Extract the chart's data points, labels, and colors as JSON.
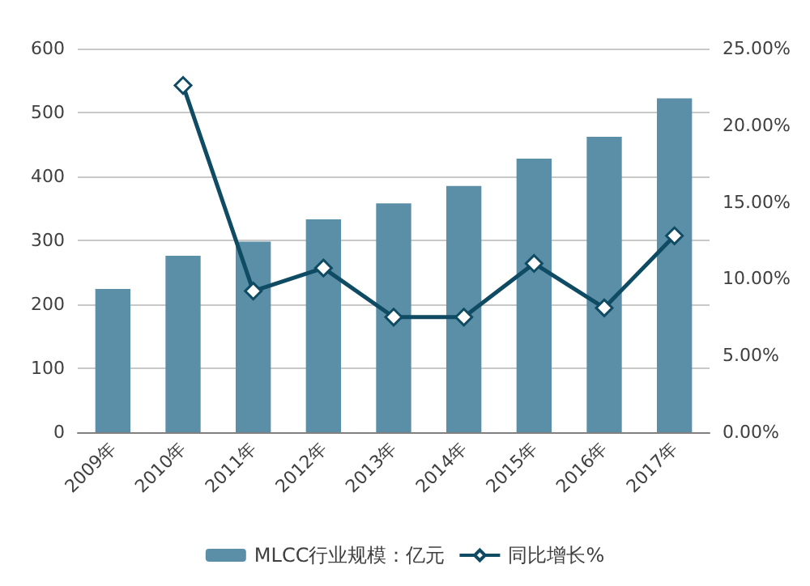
{
  "chart_data": {
    "type": "bar",
    "categories": [
      "2009年",
      "2010年",
      "2011年",
      "2012年",
      "2013年",
      "2014年",
      "2015年",
      "2016年",
      "2017年"
    ],
    "series": [
      {
        "name": "MLCC行业规模：亿元",
        "color": "#5b8fa8",
        "values": [
          224,
          276,
          298,
          333,
          358,
          385,
          428,
          462,
          522
        ]
      },
      {
        "name": "同比增长%",
        "type": "line",
        "axis": "y2",
        "color": "#0f4c64",
        "marker": "diamond",
        "values": [
          null,
          22.6,
          9.2,
          10.7,
          7.5,
          7.5,
          11.0,
          8.1,
          12.8
        ]
      }
    ],
    "ylim": [
      0,
      600
    ],
    "yticks": [
      0,
      100,
      200,
      300,
      400,
      500,
      600
    ],
    "y2lim": [
      0,
      25
    ],
    "y2ticks": [
      {
        "value": 0,
        "label": "0.00%"
      },
      {
        "value": 5,
        "label": "5.00%"
      },
      {
        "value": 10,
        "label": "10.00%"
      },
      {
        "value": 15,
        "label": "15.00%"
      },
      {
        "value": 20,
        "label": "20.00%"
      },
      {
        "value": 25,
        "label": "25.00%"
      }
    ],
    "grid": "y",
    "legend": "bottom"
  }
}
